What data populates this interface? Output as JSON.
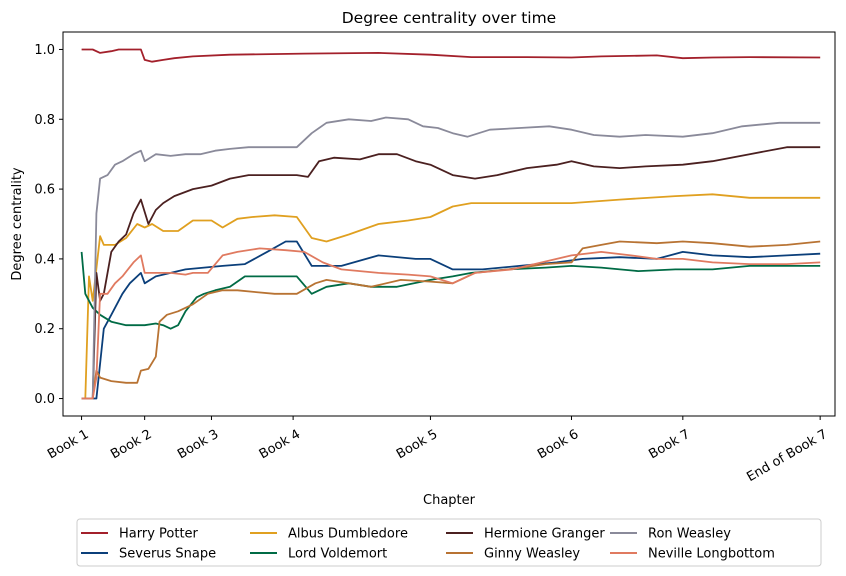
{
  "chart_data": {
    "type": "line",
    "title": "Degree centrality over time",
    "xlabel": "Chapter",
    "ylabel": "Degree centrality",
    "ylim": [
      -0.05,
      1.05
    ],
    "xlim": [
      -5,
      203
    ],
    "grid": false,
    "legend_placement": "bottom-center",
    "xticks": [
      {
        "label": "Book 1",
        "x": 0
      },
      {
        "label": "Book 2",
        "x": 17
      },
      {
        "label": "Book 3",
        "x": 35
      },
      {
        "label": "Book 4",
        "x": 57
      },
      {
        "label": "Book 5",
        "x": 94
      },
      {
        "label": "Book 6",
        "x": 132
      },
      {
        "label": "Book 7",
        "x": 162
      },
      {
        "label": "End of Book 7",
        "x": 199
      }
    ],
    "yticks": [
      {
        "label": "0.0",
        "y": 0.0
      },
      {
        "label": "0.2",
        "y": 0.2
      },
      {
        "label": "0.4",
        "y": 0.4
      },
      {
        "label": "0.6",
        "y": 0.6
      },
      {
        "label": "0.8",
        "y": 0.8
      },
      {
        "label": "1.0",
        "y": 1.0
      }
    ],
    "series": [
      {
        "name": "Harry Potter",
        "color": "#a3202b",
        "points": [
          [
            0,
            1.0
          ],
          [
            3,
            1.0
          ],
          [
            5,
            0.99
          ],
          [
            8,
            0.995
          ],
          [
            10,
            1.0
          ],
          [
            16,
            1.0
          ],
          [
            17,
            0.97
          ],
          [
            19,
            0.965
          ],
          [
            22,
            0.97
          ],
          [
            25,
            0.975
          ],
          [
            30,
            0.98
          ],
          [
            40,
            0.985
          ],
          [
            60,
            0.988
          ],
          [
            80,
            0.99
          ],
          [
            94,
            0.985
          ],
          [
            105,
            0.978
          ],
          [
            120,
            0.978
          ],
          [
            132,
            0.977
          ],
          [
            140,
            0.98
          ],
          [
            155,
            0.983
          ],
          [
            162,
            0.975
          ],
          [
            170,
            0.977
          ],
          [
            180,
            0.978
          ],
          [
            199,
            0.977
          ]
        ]
      },
      {
        "name": "Severus Snape",
        "color": "#0b3f7a",
        "points": [
          [
            0,
            0.0
          ],
          [
            3,
            0.0
          ],
          [
            4,
            0.0
          ],
          [
            6,
            0.2
          ],
          [
            8,
            0.24
          ],
          [
            11,
            0.3
          ],
          [
            13,
            0.33
          ],
          [
            16,
            0.36
          ],
          [
            17,
            0.33
          ],
          [
            20,
            0.35
          ],
          [
            24,
            0.36
          ],
          [
            28,
            0.37
          ],
          [
            33,
            0.375
          ],
          [
            38,
            0.38
          ],
          [
            44,
            0.385
          ],
          [
            50,
            0.42
          ],
          [
            55,
            0.45
          ],
          [
            58,
            0.45
          ],
          [
            62,
            0.38
          ],
          [
            70,
            0.38
          ],
          [
            80,
            0.41
          ],
          [
            90,
            0.4
          ],
          [
            94,
            0.4
          ],
          [
            100,
            0.37
          ],
          [
            108,
            0.37
          ],
          [
            118,
            0.38
          ],
          [
            128,
            0.39
          ],
          [
            135,
            0.4
          ],
          [
            145,
            0.405
          ],
          [
            155,
            0.4
          ],
          [
            162,
            0.42
          ],
          [
            170,
            0.41
          ],
          [
            180,
            0.405
          ],
          [
            190,
            0.41
          ],
          [
            199,
            0.415
          ]
        ]
      },
      {
        "name": "Albus Dumbledore",
        "color": "#e0a020",
        "points": [
          [
            0,
            0.0
          ],
          [
            1,
            0.0
          ],
          [
            2,
            0.35
          ],
          [
            3,
            0.28
          ],
          [
            5,
            0.465
          ],
          [
            6,
            0.44
          ],
          [
            9,
            0.44
          ],
          [
            12,
            0.46
          ],
          [
            15,
            0.5
          ],
          [
            17,
            0.49
          ],
          [
            19,
            0.5
          ],
          [
            22,
            0.48
          ],
          [
            26,
            0.48
          ],
          [
            30,
            0.51
          ],
          [
            35,
            0.51
          ],
          [
            38,
            0.49
          ],
          [
            42,
            0.515
          ],
          [
            46,
            0.52
          ],
          [
            52,
            0.525
          ],
          [
            58,
            0.52
          ],
          [
            62,
            0.46
          ],
          [
            66,
            0.45
          ],
          [
            72,
            0.47
          ],
          [
            80,
            0.5
          ],
          [
            88,
            0.51
          ],
          [
            94,
            0.52
          ],
          [
            100,
            0.55
          ],
          [
            105,
            0.56
          ],
          [
            115,
            0.56
          ],
          [
            125,
            0.56
          ],
          [
            132,
            0.56
          ],
          [
            145,
            0.57
          ],
          [
            160,
            0.58
          ],
          [
            170,
            0.585
          ],
          [
            180,
            0.575
          ],
          [
            190,
            0.575
          ],
          [
            199,
            0.575
          ]
        ]
      },
      {
        "name": "Lord Voldemort",
        "color": "#006b45",
        "points": [
          [
            0,
            0.42
          ],
          [
            1,
            0.3
          ],
          [
            3,
            0.26
          ],
          [
            5,
            0.24
          ],
          [
            8,
            0.22
          ],
          [
            12,
            0.21
          ],
          [
            15,
            0.21
          ],
          [
            17,
            0.21
          ],
          [
            20,
            0.215
          ],
          [
            22,
            0.21
          ],
          [
            24,
            0.2
          ],
          [
            26,
            0.21
          ],
          [
            28,
            0.25
          ],
          [
            31,
            0.29
          ],
          [
            33,
            0.3
          ],
          [
            36,
            0.31
          ],
          [
            40,
            0.32
          ],
          [
            44,
            0.35
          ],
          [
            48,
            0.35
          ],
          [
            58,
            0.35
          ],
          [
            62,
            0.3
          ],
          [
            66,
            0.32
          ],
          [
            72,
            0.33
          ],
          [
            78,
            0.32
          ],
          [
            85,
            0.32
          ],
          [
            94,
            0.34
          ],
          [
            100,
            0.35
          ],
          [
            105,
            0.36
          ],
          [
            115,
            0.37
          ],
          [
            125,
            0.375
          ],
          [
            132,
            0.38
          ],
          [
            140,
            0.375
          ],
          [
            150,
            0.365
          ],
          [
            160,
            0.37
          ],
          [
            170,
            0.37
          ],
          [
            180,
            0.38
          ],
          [
            190,
            0.38
          ],
          [
            199,
            0.38
          ]
        ]
      },
      {
        "name": "Hermione Granger",
        "color": "#4b2020",
        "points": [
          [
            0,
            0.0
          ],
          [
            3,
            0.0
          ],
          [
            4,
            0.36
          ],
          [
            5,
            0.28
          ],
          [
            6,
            0.3
          ],
          [
            8,
            0.42
          ],
          [
            10,
            0.45
          ],
          [
            12,
            0.47
          ],
          [
            14,
            0.53
          ],
          [
            16,
            0.57
          ],
          [
            18,
            0.5
          ],
          [
            20,
            0.54
          ],
          [
            22,
            0.56
          ],
          [
            25,
            0.58
          ],
          [
            30,
            0.6
          ],
          [
            35,
            0.61
          ],
          [
            40,
            0.63
          ],
          [
            45,
            0.64
          ],
          [
            58,
            0.64
          ],
          [
            61,
            0.635
          ],
          [
            64,
            0.68
          ],
          [
            68,
            0.69
          ],
          [
            75,
            0.685
          ],
          [
            80,
            0.7
          ],
          [
            85,
            0.7
          ],
          [
            90,
            0.68
          ],
          [
            94,
            0.67
          ],
          [
            100,
            0.64
          ],
          [
            106,
            0.63
          ],
          [
            112,
            0.64
          ],
          [
            120,
            0.66
          ],
          [
            128,
            0.67
          ],
          [
            132,
            0.68
          ],
          [
            138,
            0.665
          ],
          [
            145,
            0.66
          ],
          [
            152,
            0.665
          ],
          [
            162,
            0.67
          ],
          [
            170,
            0.68
          ],
          [
            180,
            0.7
          ],
          [
            190,
            0.72
          ],
          [
            199,
            0.72
          ]
        ]
      },
      {
        "name": "Ginny Weasley",
        "color": "#b87333",
        "points": [
          [
            0,
            0.0
          ],
          [
            3,
            0.0
          ],
          [
            4,
            0.08
          ],
          [
            5,
            0.06
          ],
          [
            8,
            0.05
          ],
          [
            12,
            0.045
          ],
          [
            15,
            0.045
          ],
          [
            16,
            0.08
          ],
          [
            18,
            0.085
          ],
          [
            20,
            0.12
          ],
          [
            21,
            0.22
          ],
          [
            23,
            0.24
          ],
          [
            26,
            0.25
          ],
          [
            30,
            0.27
          ],
          [
            34,
            0.3
          ],
          [
            38,
            0.31
          ],
          [
            42,
            0.31
          ],
          [
            47,
            0.305
          ],
          [
            52,
            0.3
          ],
          [
            58,
            0.3
          ],
          [
            63,
            0.33
          ],
          [
            66,
            0.34
          ],
          [
            72,
            0.33
          ],
          [
            78,
            0.32
          ],
          [
            86,
            0.34
          ],
          [
            94,
            0.335
          ],
          [
            100,
            0.33
          ],
          [
            106,
            0.36
          ],
          [
            115,
            0.37
          ],
          [
            125,
            0.385
          ],
          [
            132,
            0.39
          ],
          [
            135,
            0.43
          ],
          [
            140,
            0.44
          ],
          [
            145,
            0.45
          ],
          [
            155,
            0.445
          ],
          [
            162,
            0.45
          ],
          [
            170,
            0.445
          ],
          [
            180,
            0.435
          ],
          [
            190,
            0.44
          ],
          [
            199,
            0.45
          ]
        ]
      },
      {
        "name": "Ron Weasley",
        "color": "#8a8a9a",
        "points": [
          [
            0,
            0.0
          ],
          [
            3,
            0.0
          ],
          [
            4,
            0.53
          ],
          [
            5,
            0.63
          ],
          [
            7,
            0.64
          ],
          [
            9,
            0.67
          ],
          [
            11,
            0.68
          ],
          [
            14,
            0.7
          ],
          [
            16,
            0.71
          ],
          [
            17,
            0.68
          ],
          [
            20,
            0.7
          ],
          [
            24,
            0.695
          ],
          [
            28,
            0.7
          ],
          [
            32,
            0.7
          ],
          [
            36,
            0.71
          ],
          [
            40,
            0.715
          ],
          [
            45,
            0.72
          ],
          [
            50,
            0.72
          ],
          [
            58,
            0.72
          ],
          [
            62,
            0.76
          ],
          [
            66,
            0.79
          ],
          [
            72,
            0.8
          ],
          [
            78,
            0.795
          ],
          [
            82,
            0.805
          ],
          [
            88,
            0.8
          ],
          [
            92,
            0.78
          ],
          [
            96,
            0.775
          ],
          [
            100,
            0.76
          ],
          [
            104,
            0.75
          ],
          [
            110,
            0.77
          ],
          [
            118,
            0.775
          ],
          [
            126,
            0.78
          ],
          [
            132,
            0.77
          ],
          [
            138,
            0.755
          ],
          [
            145,
            0.75
          ],
          [
            152,
            0.755
          ],
          [
            162,
            0.75
          ],
          [
            170,
            0.76
          ],
          [
            178,
            0.78
          ],
          [
            188,
            0.79
          ],
          [
            199,
            0.79
          ]
        ]
      },
      {
        "name": "Neville Longbottom",
        "color": "#e07a60",
        "points": [
          [
            0,
            0.0
          ],
          [
            3,
            0.0
          ],
          [
            4,
            0.06
          ],
          [
            5,
            0.3
          ],
          [
            7,
            0.3
          ],
          [
            9,
            0.33
          ],
          [
            11,
            0.35
          ],
          [
            14,
            0.39
          ],
          [
            16,
            0.41
          ],
          [
            17,
            0.36
          ],
          [
            20,
            0.36
          ],
          [
            24,
            0.36
          ],
          [
            28,
            0.355
          ],
          [
            30,
            0.36
          ],
          [
            34,
            0.36
          ],
          [
            38,
            0.41
          ],
          [
            42,
            0.42
          ],
          [
            48,
            0.43
          ],
          [
            55,
            0.425
          ],
          [
            60,
            0.42
          ],
          [
            65,
            0.39
          ],
          [
            70,
            0.37
          ],
          [
            80,
            0.36
          ],
          [
            88,
            0.355
          ],
          [
            94,
            0.35
          ],
          [
            100,
            0.33
          ],
          [
            106,
            0.36
          ],
          [
            116,
            0.37
          ],
          [
            124,
            0.39
          ],
          [
            132,
            0.41
          ],
          [
            140,
            0.42
          ],
          [
            148,
            0.41
          ],
          [
            155,
            0.4
          ],
          [
            162,
            0.4
          ],
          [
            170,
            0.39
          ],
          [
            180,
            0.385
          ],
          [
            190,
            0.385
          ],
          [
            199,
            0.39
          ]
        ]
      }
    ]
  }
}
